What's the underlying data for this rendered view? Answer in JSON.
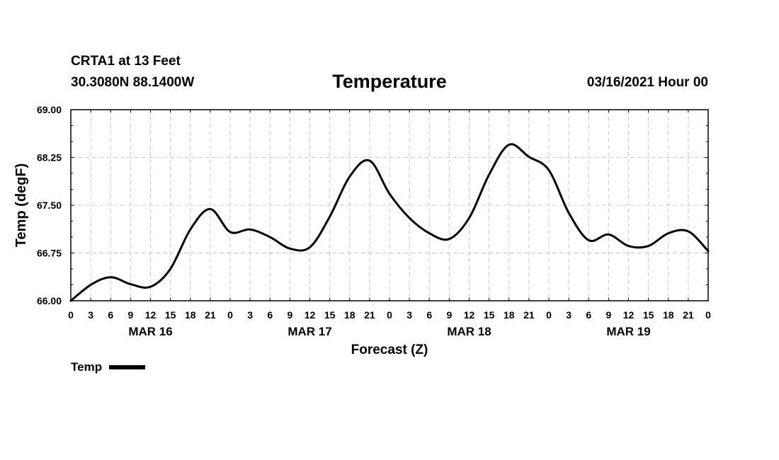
{
  "header": {
    "station": "CRTA1 at 13 Feet",
    "coords": "30.3080N 88.1400W",
    "title": "Temperature",
    "datetime": "03/16/2021 Hour 00"
  },
  "legend": {
    "label": "Temp",
    "color": "#000000"
  },
  "chart_data": {
    "type": "line",
    "title": "Temperature",
    "xlabel": "Forecast (Z)",
    "ylabel": "Temp (degF)",
    "xlim": [
      0,
      96
    ],
    "ylim": [
      66.0,
      69.0
    ],
    "yticks": [
      "66.00",
      "66.75",
      "67.50",
      "68.25",
      "69.00"
    ],
    "xtick_labels": [
      "0",
      "3",
      "6",
      "9",
      "12",
      "15",
      "18",
      "21",
      "0",
      "3",
      "6",
      "9",
      "12",
      "15",
      "18",
      "21",
      "0",
      "3",
      "6",
      "9",
      "12",
      "15",
      "18",
      "21",
      "0",
      "3",
      "6",
      "9",
      "12",
      "15",
      "18",
      "21",
      "0"
    ],
    "day_labels": [
      {
        "label": "MAR 16",
        "hour": 12
      },
      {
        "label": "MAR 17",
        "hour": 36
      },
      {
        "label": "MAR 18",
        "hour": 60
      },
      {
        "label": "MAR 19",
        "hour": 84
      }
    ],
    "grid": true,
    "series": [
      {
        "name": "Temp",
        "x": [
          0,
          3,
          6,
          9,
          12,
          15,
          18,
          21,
          24,
          27,
          30,
          33,
          36,
          39,
          42,
          45,
          48,
          51,
          54,
          57,
          60,
          63,
          66,
          69,
          72,
          75,
          78,
          81,
          84,
          87,
          90,
          93,
          96
        ],
        "values": [
          66.0,
          66.25,
          66.37,
          66.26,
          66.22,
          66.5,
          67.12,
          67.44,
          67.08,
          67.12,
          67.0,
          66.82,
          66.84,
          67.32,
          67.95,
          68.2,
          67.68,
          67.3,
          67.06,
          66.97,
          67.3,
          67.98,
          68.45,
          68.26,
          68.05,
          67.38,
          66.95,
          67.04,
          66.86,
          66.86,
          67.06,
          67.09,
          66.78
        ]
      }
    ]
  }
}
